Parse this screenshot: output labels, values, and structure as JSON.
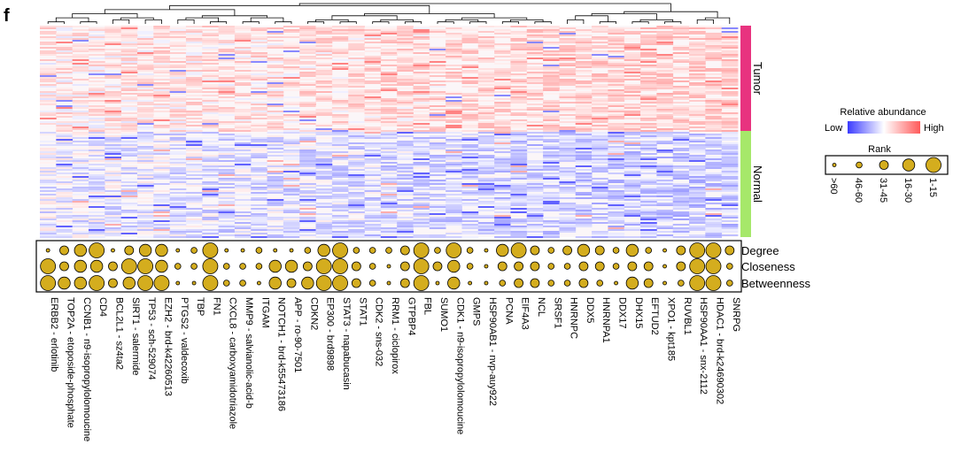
{
  "panel_label": "f",
  "colors": {
    "low": "#3b3bff",
    "mid": "#ffffff",
    "high": "#ff5a5a",
    "tumor": "#e8337f",
    "normal": "#a6e86a",
    "dot_fill": "#d4ad1e",
    "dot_stroke": "#000000"
  },
  "chart_data": {
    "type": "heatmap",
    "title": "",
    "groups": [
      "Tumor",
      "Normal"
    ],
    "columns": [
      "ERBB2 - erlotinib",
      "TOP2A - etoposide-phosphate",
      "CCNB1 - n9-isopropylolomoucine",
      "CD4",
      "BCL2L1 - sz4ta2",
      "SIRT1 - salermide",
      "TP53 - sch-529074",
      "EZH2 - brd-k42260513",
      "PTGS2 - valdecoxib",
      "TBP",
      "FN1",
      "CXCL8 - carboxyamidotriazole",
      "MMP9 - salvianolic-acid-b",
      "ITGAM",
      "NOTCH1 - brd-k55473186",
      "APP - ro-90-7501",
      "CDKN2",
      "EP300 - brd9898",
      "STAT3 - napabucasin",
      "STAT1",
      "CDK2 - sns-032",
      "RRM1 - ciclopirox",
      "GTPBP4",
      "FBL",
      "SUMO1",
      "CDK1 - n9-isopropylolomoucine",
      "GMPS",
      "HSP90AB1 - nvp-auy922",
      "PCNA",
      "EIF4A3",
      "NCL",
      "SRSF1",
      "HNRNPC",
      "DDX5",
      "HNRNPA1",
      "DDX17",
      "DHX15",
      "EFTUD2",
      "XPO1 - kpt185",
      "RUVBL1",
      "HSP90AA1 - snx-2112",
      "HDAC1 - brd-k24690302",
      "SNRPG"
    ],
    "metrics": [
      "Degree",
      "Closeness",
      "Betweenness"
    ],
    "rank_categories": [
      "1-15",
      "16-30",
      "31-45",
      "46-60",
      ">60"
    ],
    "ranks": [
      [
        4,
        2,
        1,
        0,
        4,
        2,
        1,
        1,
        4,
        3,
        0,
        4,
        4,
        3,
        4,
        4,
        3,
        1,
        0,
        3,
        3,
        3,
        2,
        0,
        3,
        0,
        3,
        4,
        1,
        0,
        2,
        3,
        2,
        1,
        2,
        3,
        1,
        3,
        4,
        2,
        0,
        0,
        2
      ],
      [
        0,
        2,
        1,
        1,
        2,
        0,
        0,
        1,
        3,
        3,
        0,
        3,
        3,
        3,
        1,
        1,
        2,
        0,
        0,
        2,
        3,
        4,
        2,
        0,
        2,
        1,
        3,
        4,
        2,
        2,
        2,
        3,
        3,
        2,
        2,
        3,
        2,
        2,
        4,
        2,
        0,
        0,
        3
      ],
      [
        0,
        1,
        1,
        0,
        2,
        1,
        0,
        0,
        4,
        4,
        0,
        3,
        3,
        4,
        1,
        2,
        1,
        0,
        0,
        2,
        3,
        4,
        2,
        0,
        4,
        1,
        4,
        4,
        3,
        2,
        2,
        3,
        3,
        2,
        3,
        4,
        1,
        2,
        4,
        3,
        0,
        0,
        3
      ]
    ],
    "legend": {
      "color_title": "Relative abundance",
      "low_label": "Low",
      "high_label": "High",
      "size_title": "Rank",
      "placement": "right"
    }
  }
}
